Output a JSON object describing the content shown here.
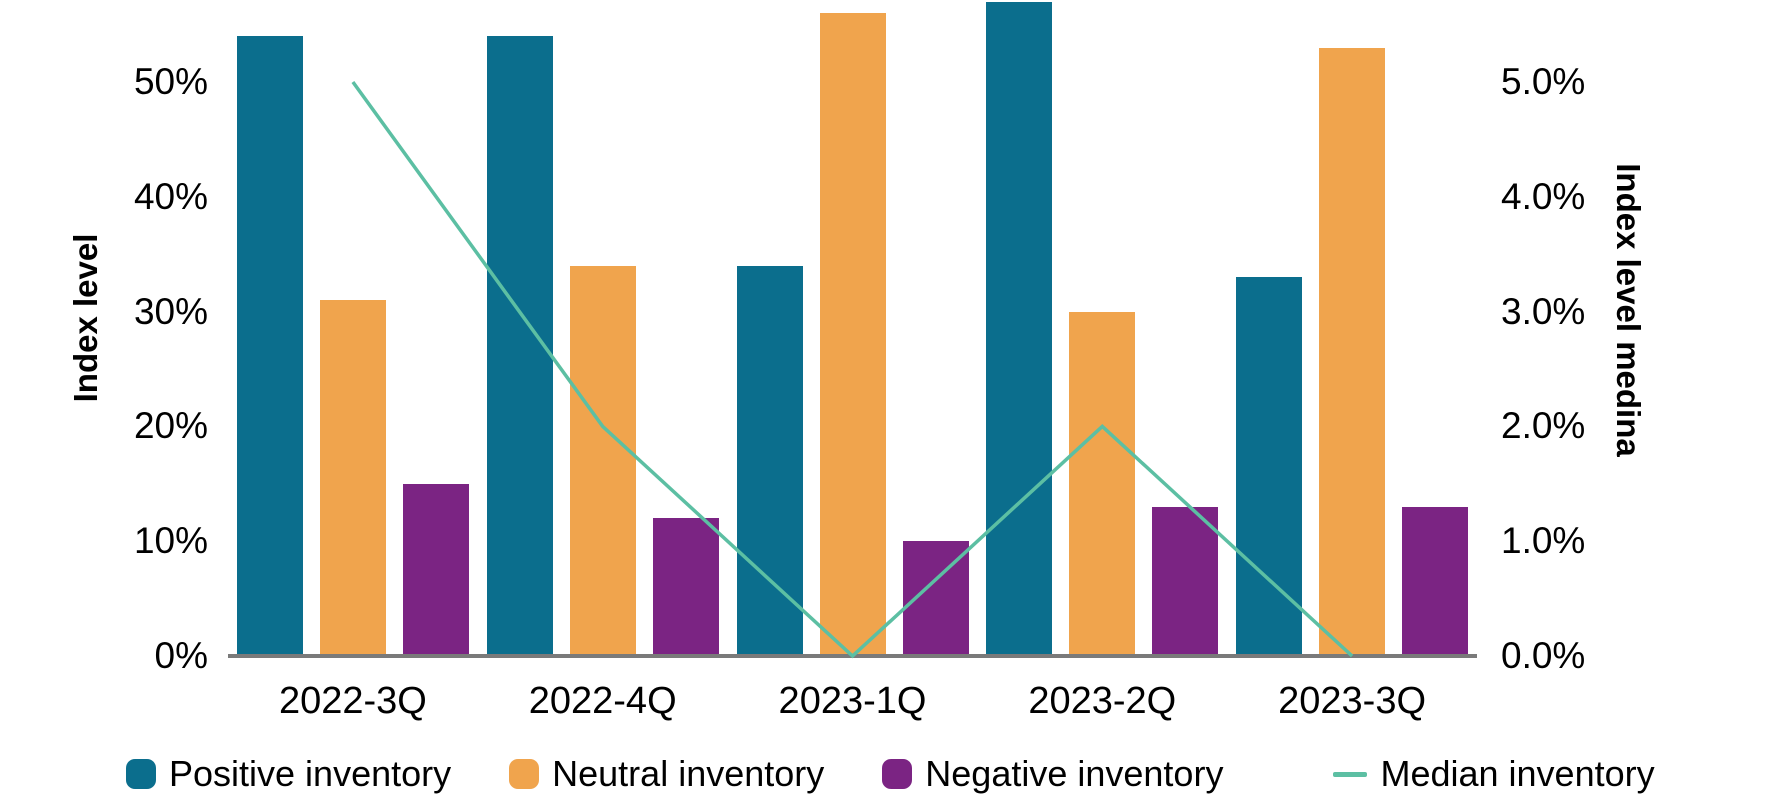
{
  "chart_data": {
    "type": "bar",
    "title": "",
    "categories": [
      "2022-3Q",
      "2022-4Q",
      "2023-1Q",
      "2023-2Q",
      "2023-3Q"
    ],
    "series": [
      {
        "name": "Positive inventory",
        "kind": "bar",
        "axis": "left",
        "color": "#0B6E8D",
        "values": [
          54,
          54,
          34,
          57,
          33
        ]
      },
      {
        "name": "Neutral inventory",
        "kind": "bar",
        "axis": "left",
        "color": "#F0A44D",
        "values": [
          31,
          34,
          56,
          30,
          53
        ]
      },
      {
        "name": "Negative inventory",
        "kind": "bar",
        "axis": "left",
        "color": "#7B2483",
        "values": [
          15,
          12,
          10,
          13,
          13
        ]
      },
      {
        "name": "Median inventory",
        "kind": "line",
        "axis": "right",
        "color": "#5CBFA3",
        "values": [
          5.0,
          2.0,
          0.0,
          2.0,
          0.0
        ]
      }
    ],
    "left_axis": {
      "title": "Index level",
      "ticks": [
        0,
        10,
        20,
        30,
        40,
        50
      ],
      "tick_labels": [
        "0%",
        "10%",
        "20%",
        "30%",
        "40%",
        "50%"
      ],
      "ylim": [
        0,
        57.2
      ]
    },
    "right_axis": {
      "title": "Index level medina",
      "ticks": [
        0,
        1,
        2,
        3,
        4,
        5
      ],
      "tick_labels": [
        "0.0%",
        "1.0%",
        "2.0%",
        "3.0%",
        "4.0%",
        "5.0%"
      ],
      "ylim": [
        0,
        5.72
      ]
    },
    "grid": false,
    "legend_position": "bottom",
    "axis_line_color": "#7A7A7A",
    "text_color": "#000000",
    "background_color": "#FFFFFF"
  }
}
